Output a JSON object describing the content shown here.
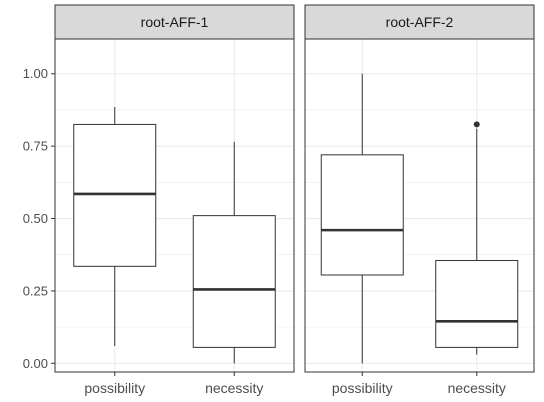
{
  "chart_data": {
    "type": "boxplot",
    "categories": [
      "possibility",
      "necessity"
    ],
    "ylim": [
      -0.03,
      1.12
    ],
    "yticks": [
      0.0,
      0.25,
      0.5,
      0.75,
      1.0
    ],
    "ytick_labels": [
      "0.00",
      "0.25",
      "0.50",
      "0.75",
      "1.00"
    ],
    "grid": true,
    "panels": [
      {
        "title": "root-AFF-1",
        "boxes": [
          {
            "category": "possibility",
            "min": 0.06,
            "q1": 0.335,
            "median": 0.585,
            "q3": 0.825,
            "max": 0.885,
            "outliers": []
          },
          {
            "category": "necessity",
            "min": 0.0,
            "q1": 0.055,
            "median": 0.255,
            "q3": 0.51,
            "max": 0.765,
            "outliers": []
          }
        ]
      },
      {
        "title": "root-AFF-2",
        "boxes": [
          {
            "category": "possibility",
            "min": 0.0,
            "q1": 0.305,
            "median": 0.46,
            "q3": 0.72,
            "max": 1.0,
            "outliers": []
          },
          {
            "category": "necessity",
            "min": 0.03,
            "q1": 0.055,
            "median": 0.145,
            "q3": 0.355,
            "max": 0.81,
            "outliers": [
              0.825
            ]
          }
        ]
      }
    ]
  },
  "colors": {
    "strip_bg": "#d9d9d9",
    "panel_border": "#333333",
    "grid": "#ebebeb",
    "box_line": "#333333"
  }
}
